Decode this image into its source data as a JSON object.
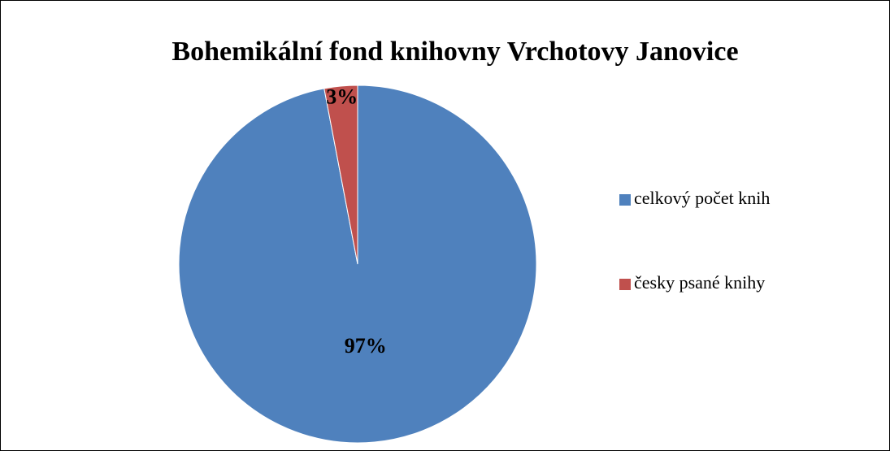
{
  "chart_data": {
    "type": "pie",
    "title": "Bohemikální fond knihovny Vrchotovy Janovice",
    "categories": [
      "celkový počet knih",
      "česky psané knihy"
    ],
    "values": [
      97,
      3
    ],
    "value_labels": [
      "97%",
      "3%"
    ],
    "colors": [
      "#4f81bd",
      "#c0504d"
    ],
    "legend": "right"
  }
}
